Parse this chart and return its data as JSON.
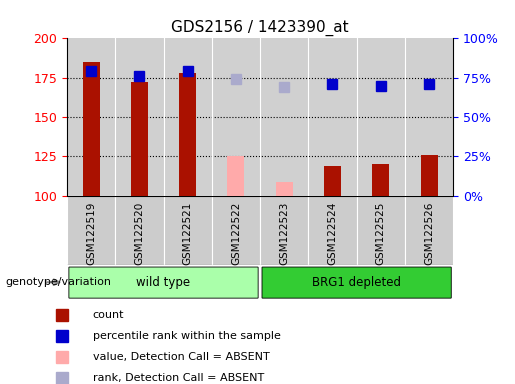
{
  "title": "GDS2156 / 1423390_at",
  "samples": [
    "GSM122519",
    "GSM122520",
    "GSM122521",
    "GSM122522",
    "GSM122523",
    "GSM122524",
    "GSM122525",
    "GSM122526"
  ],
  "count_values": [
    185,
    172,
    178,
    null,
    null,
    119,
    120,
    126
  ],
  "count_absent_values": [
    null,
    null,
    null,
    125,
    109,
    null,
    null,
    null
  ],
  "rank_values": [
    179,
    176,
    179,
    null,
    null,
    171,
    170,
    171
  ],
  "rank_absent_values": [
    null,
    null,
    null,
    174,
    169,
    null,
    null,
    null
  ],
  "ylim_left": [
    100,
    200
  ],
  "ylim_right": [
    0,
    100
  ],
  "yticks_left": [
    100,
    125,
    150,
    175,
    200
  ],
  "yticks_right": [
    0,
    25,
    50,
    75,
    100
  ],
  "ytick_labels_right": [
    "0%",
    "25%",
    "50%",
    "75%",
    "100%"
  ],
  "bar_color_present": "#aa1100",
  "bar_color_absent": "#ffaaaa",
  "rank_color_present": "#0000cc",
  "rank_color_absent": "#aaaacc",
  "group1_label": "wild type",
  "group2_label": "BRG1 depleted",
  "group1_color": "#aaffaa",
  "group2_color": "#33cc33",
  "xlabel_label": "genotype/variation",
  "legend_items": [
    {
      "label": "count",
      "color": "#aa1100",
      "type": "square"
    },
    {
      "label": "percentile rank within the sample",
      "color": "#0000cc",
      "type": "square"
    },
    {
      "label": "value, Detection Call = ABSENT",
      "color": "#ffaaaa",
      "type": "square"
    },
    {
      "label": "rank, Detection Call = ABSENT",
      "color": "#aaaacc",
      "type": "square"
    }
  ],
  "bar_width": 0.35,
  "rank_marker_size": 7,
  "grid_lines": [
    125,
    150,
    175
  ],
  "plot_bg": "#d0d0d0",
  "tick_label_bg": "#c0c0c0"
}
